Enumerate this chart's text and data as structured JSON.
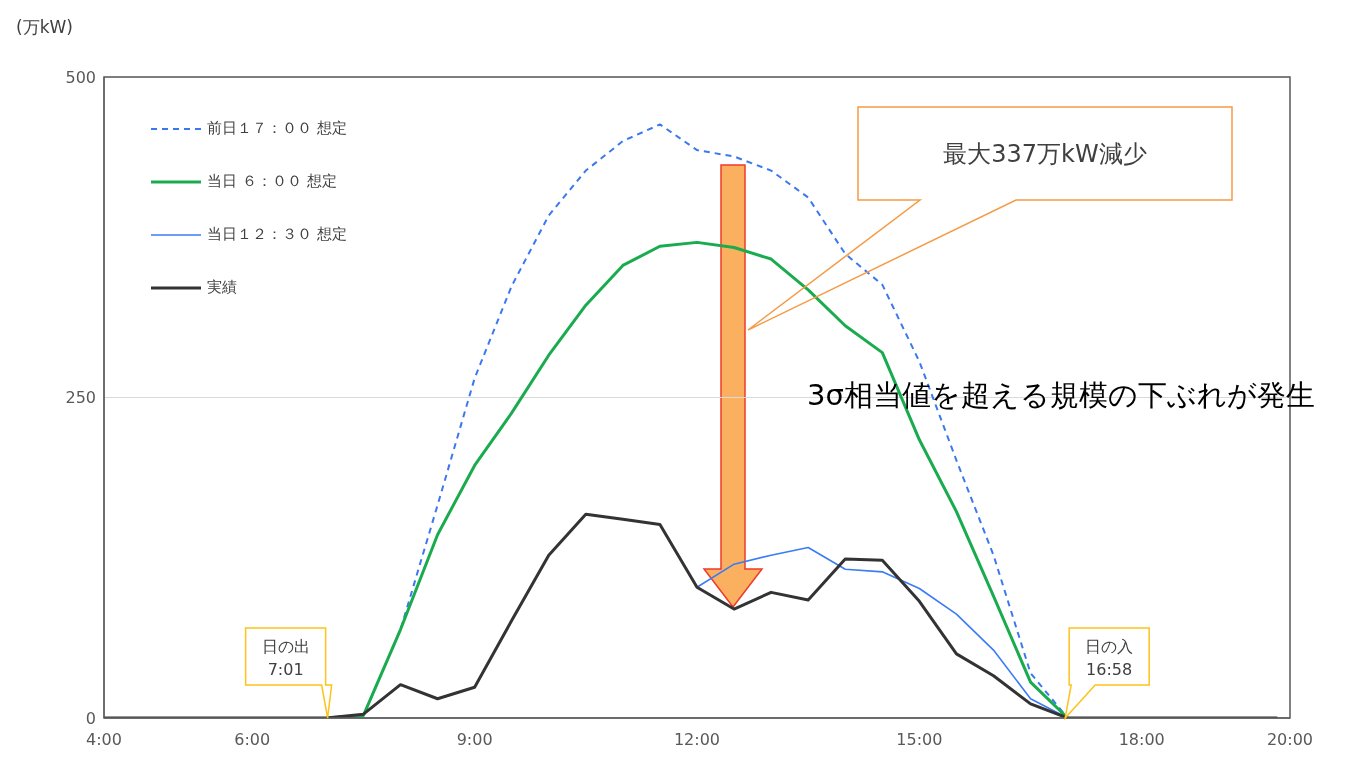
{
  "chart_data": {
    "type": "line",
    "ylabel": "(万kW)",
    "xlim": [
      4,
      20
    ],
    "xticks": [
      {
        "value": 4,
        "label": "4:00"
      },
      {
        "value": 6,
        "label": "6:00"
      },
      {
        "value": 9,
        "label": "9:00"
      },
      {
        "value": 12,
        "label": "12:00"
      },
      {
        "value": 15,
        "label": "15:00"
      },
      {
        "value": 18,
        "label": "18:00"
      },
      {
        "value": 20,
        "label": "20:00"
      }
    ],
    "ylim": [
      0,
      500
    ],
    "yticks": [
      0,
      250,
      500
    ],
    "grid": "y",
    "legend": "top left",
    "series": [
      {
        "name": "前日１７：００ 想定",
        "color": "#3b78f0",
        "line_style": "dashed",
        "x": [
          7,
          7.5,
          8,
          8.5,
          9,
          9.5,
          10,
          10.5,
          11,
          11.5,
          12,
          12.5,
          13,
          13.5,
          14,
          14.5,
          15,
          15.5,
          16,
          16.5,
          17
        ],
        "values": [
          0,
          2,
          69,
          166,
          265,
          337,
          392,
          427,
          450,
          463,
          443,
          438,
          427,
          406,
          362,
          338,
          278,
          201,
          127,
          35,
          0
        ]
      },
      {
        "name": "当日 ６：００ 想定",
        "color": "#1aab4f",
        "line_style": "solid",
        "x": [
          7,
          7.5,
          8,
          8.5,
          9,
          9.5,
          10,
          10.5,
          11,
          11.5,
          12,
          12.5,
          13,
          13.5,
          14,
          14.5,
          15,
          15.5,
          16,
          16.5,
          17
        ],
        "values": [
          0,
          2,
          69,
          143,
          197,
          238,
          283,
          322,
          353,
          368,
          371,
          367,
          358,
          334,
          306,
          285,
          217,
          161,
          95,
          28,
          0
        ]
      },
      {
        "name": "当日１２：３０ 想定",
        "color": "#3b7bf5",
        "line_style": "solid",
        "x": [
          12,
          12.5,
          13,
          13.5,
          14,
          14.5,
          15,
          15.5,
          16,
          16.5,
          17
        ],
        "values": [
          102,
          120,
          127,
          133,
          116,
          114,
          101,
          81,
          53,
          15,
          0
        ]
      },
      {
        "name": "実績",
        "color": "#333333",
        "line_style": "solid",
        "x": [
          4,
          7,
          7.5,
          8,
          8.5,
          9,
          9.5,
          10,
          10.5,
          11,
          11.5,
          12,
          12.5,
          13,
          13.5,
          14,
          14.5,
          15,
          15.5,
          16,
          16.5,
          17,
          19.83
        ],
        "values": [
          0,
          0,
          3,
          26,
          15,
          24,
          76,
          127,
          159,
          155,
          151,
          102,
          85,
          98,
          92,
          124,
          123,
          91,
          50,
          33,
          11,
          0,
          0
        ]
      }
    ],
    "annotations": [
      "最大337万kW減少",
      "3σ相当値を超える規模の下ぶれが発生",
      {
        "text": "日の出\n7:01",
        "x": 7.017,
        "y": 0
      },
      {
        "text": "日の入\n16:58",
        "x": 16.967,
        "y": 0
      }
    ]
  }
}
